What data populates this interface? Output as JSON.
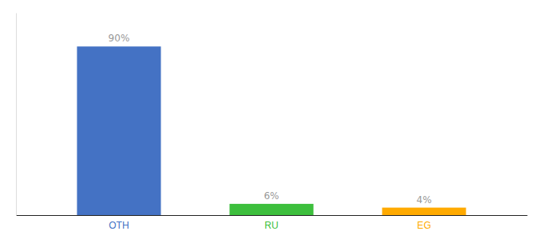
{
  "chart_data": {
    "type": "bar",
    "categories": [
      "OTH",
      "RU",
      "EG"
    ],
    "values": [
      90,
      6,
      4
    ],
    "value_labels": [
      "90%",
      "6%",
      "4%"
    ],
    "colors": [
      "#4472c4",
      "#3dbf3d",
      "#ffaa00"
    ],
    "ylim": [
      0,
      108
    ],
    "data_labels": true,
    "tick_labels": "x",
    "grid": false
  }
}
